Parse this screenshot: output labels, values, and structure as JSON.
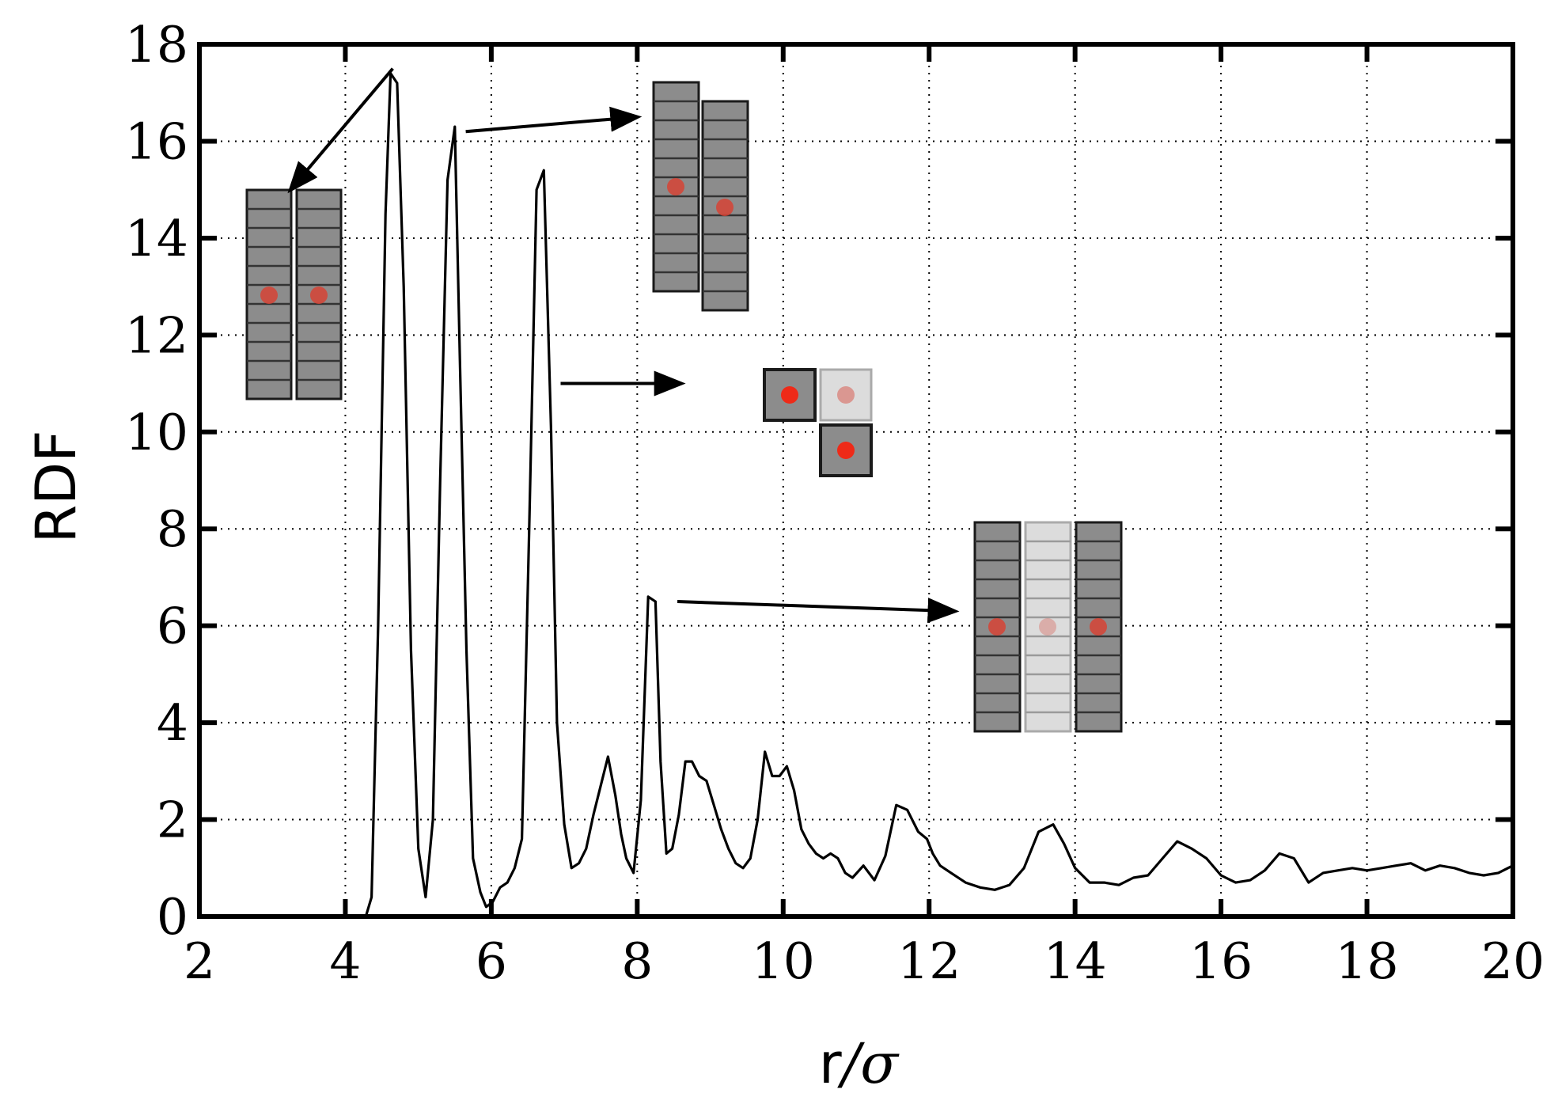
{
  "chart_data": {
    "type": "line",
    "title": "",
    "xlabel": "r/σ",
    "xlabel_parts": {
      "var": "r",
      "slash": "/",
      "sigma": "σ"
    },
    "ylabel": "RDF",
    "xlim": [
      2,
      20
    ],
    "ylim": [
      0,
      18
    ],
    "xticks": [
      2,
      4,
      6,
      8,
      10,
      12,
      14,
      16,
      18,
      20
    ],
    "yticks": [
      0,
      2,
      4,
      6,
      8,
      10,
      12,
      14,
      16,
      18
    ],
    "xtick_labels": [
      "2",
      "4",
      "6",
      "8",
      "10",
      "12",
      "14",
      "16",
      "18",
      "20"
    ],
    "ytick_labels": [
      "0",
      "2",
      "4",
      "6",
      "8",
      "10",
      "12",
      "14",
      "16",
      "18"
    ],
    "grid": true,
    "series": [
      {
        "name": "RDF",
        "color": "#000000",
        "x": [
          4.28,
          4.36,
          4.45,
          4.55,
          4.62,
          4.71,
          4.8,
          4.9,
          5.0,
          5.1,
          5.2,
          5.3,
          5.4,
          5.5,
          5.57,
          5.66,
          5.75,
          5.85,
          5.93,
          6.02,
          6.12,
          6.22,
          6.32,
          6.42,
          6.52,
          6.62,
          6.72,
          6.82,
          6.9,
          7.0,
          7.1,
          7.2,
          7.3,
          7.4,
          7.5,
          7.6,
          7.7,
          7.78,
          7.85,
          7.95,
          8.05,
          8.15,
          8.25,
          8.32,
          8.4,
          8.48,
          8.57,
          8.66,
          8.75,
          8.85,
          8.95,
          9.05,
          9.15,
          9.25,
          9.35,
          9.45,
          9.55,
          9.65,
          9.75,
          9.85,
          9.95,
          10.05,
          10.15,
          10.25,
          10.35,
          10.45,
          10.55,
          10.65,
          10.75,
          10.85,
          10.95,
          11.1,
          11.25,
          11.4,
          11.55,
          11.7,
          11.85,
          11.97,
          12.05,
          12.15,
          12.3,
          12.5,
          12.7,
          12.9,
          13.1,
          13.3,
          13.5,
          13.7,
          13.85,
          14.0,
          14.2,
          14.4,
          14.6,
          14.8,
          15.0,
          15.2,
          15.4,
          15.6,
          15.8,
          16.0,
          16.2,
          16.4,
          16.6,
          16.8,
          17.0,
          17.2,
          17.4,
          17.6,
          17.8,
          18.0,
          18.2,
          18.4,
          18.6,
          18.8,
          19.0,
          19.2,
          19.4,
          19.6,
          19.8,
          20.0
        ],
        "y": [
          0.0,
          0.4,
          6.0,
          14.5,
          17.4,
          17.2,
          13.0,
          5.5,
          1.4,
          0.4,
          2.0,
          9.0,
          15.2,
          16.3,
          11.5,
          5.5,
          1.2,
          0.5,
          0.2,
          0.3,
          0.6,
          0.7,
          1.0,
          1.6,
          8.0,
          15.0,
          15.4,
          10.0,
          4.0,
          1.9,
          1.0,
          1.1,
          1.4,
          2.1,
          2.7,
          3.3,
          2.5,
          1.7,
          1.2,
          0.9,
          2.4,
          6.6,
          6.5,
          3.2,
          1.3,
          1.4,
          2.1,
          3.2,
          3.2,
          2.9,
          2.8,
          2.3,
          1.8,
          1.4,
          1.1,
          1.0,
          1.2,
          2.0,
          3.4,
          2.9,
          2.9,
          3.1,
          2.6,
          1.8,
          1.5,
          1.3,
          1.2,
          1.3,
          1.2,
          0.9,
          0.8,
          1.05,
          0.75,
          1.25,
          2.3,
          2.2,
          1.75,
          1.6,
          1.3,
          1.05,
          0.9,
          0.7,
          0.6,
          0.55,
          0.65,
          1.0,
          1.75,
          1.9,
          1.5,
          1.0,
          0.7,
          0.7,
          0.65,
          0.8,
          0.85,
          1.2,
          1.55,
          1.4,
          1.2,
          0.85,
          0.7,
          0.75,
          0.95,
          1.3,
          1.2,
          0.7,
          0.9,
          0.95,
          1.0,
          0.95,
          1.0,
          1.05,
          1.1,
          0.95,
          1.05,
          1.0,
          0.9,
          0.85,
          0.9,
          1.05
        ]
      }
    ],
    "annotations": [
      {
        "name": "two-parallel-columns-aligned",
        "arrow_from": [
          4.65,
          17.5
        ],
        "arrow_to": [
          3.25,
          15.0
        ],
        "inset": "two vertical stacked-segment columns side by side, red centre dots level"
      },
      {
        "name": "two-parallel-columns-offset",
        "arrow_from": [
          5.65,
          16.2
        ],
        "arrow_to": [
          8.0,
          16.5
        ],
        "inset": "two vertical stacked-segment columns, second shifted down"
      },
      {
        "name": "three-squares-end-on",
        "arrow_from": [
          6.95,
          11.0
        ],
        "arrow_to": [
          8.6,
          11.0
        ],
        "inset": "end-on square cross-sections in an L arrangement"
      },
      {
        "name": "three-columns-with-faded-middle",
        "arrow_from": [
          8.55,
          6.5
        ],
        "arrow_to": [
          12.35,
          6.3
        ],
        "inset": "three vertical columns, middle one faded"
      }
    ],
    "colors": {
      "line": "#000000",
      "grid": "#000000",
      "column_fill": "#8c8c8c",
      "column_faded_fill": "#dcdcdc",
      "dot": "#d64335",
      "dot_bright": "#ee2a18"
    }
  }
}
